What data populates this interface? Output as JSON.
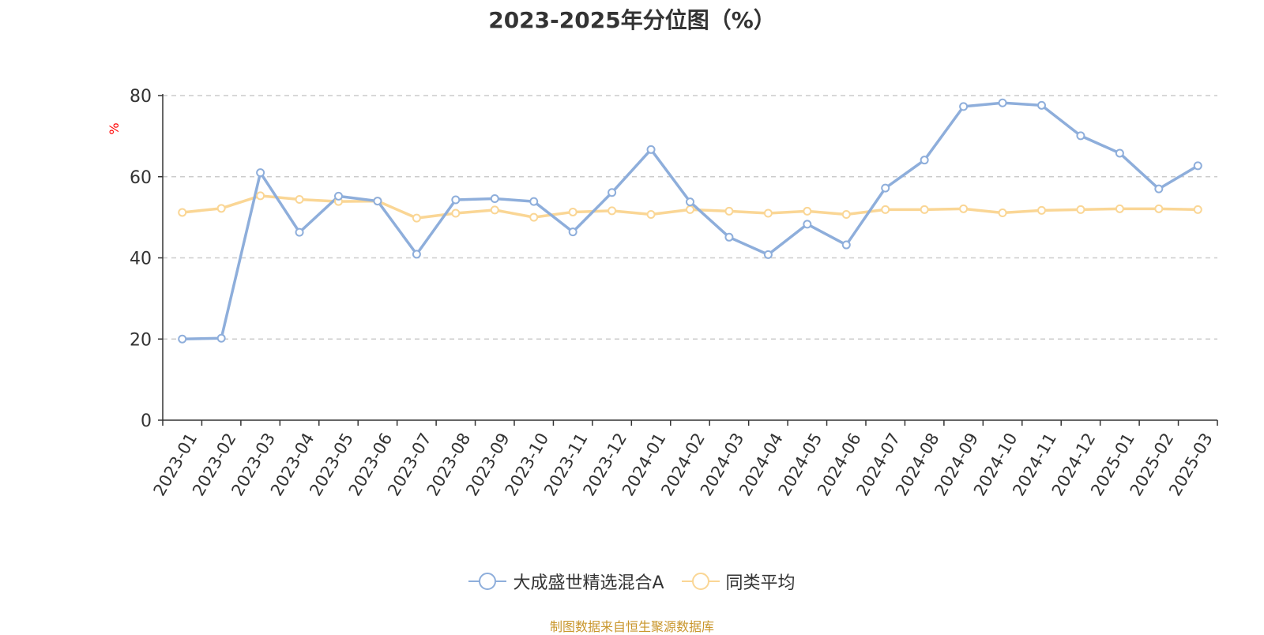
{
  "chart_data": {
    "type": "line",
    "title": "2023-2025年分位图（%）",
    "ylabel": "%",
    "xlabel": "",
    "ylim": [
      0,
      80
    ],
    "yticks": [
      0,
      20,
      40,
      60,
      80
    ],
    "grid": true,
    "legend_position": "bottom",
    "categories": [
      "2023-01",
      "2023-02",
      "2023-03",
      "2023-04",
      "2023-05",
      "2023-06",
      "2023-07",
      "2023-08",
      "2023-09",
      "2023-10",
      "2023-11",
      "2023-12",
      "2024-01",
      "2024-02",
      "2024-03",
      "2024-04",
      "2024-05",
      "2024-06",
      "2024-07",
      "2024-08",
      "2024-09",
      "2024-10",
      "2024-11",
      "2024-12",
      "2025-01",
      "2025-02",
      "2025-03"
    ],
    "series": [
      {
        "name": "大成盛世精选混合A",
        "color": "#8eaedb",
        "values": [
          20.0,
          20.2,
          61.0,
          46.3,
          55.2,
          54.0,
          40.9,
          54.3,
          54.6,
          53.9,
          46.4,
          56.1,
          66.7,
          53.8,
          45.1,
          40.8,
          48.3,
          43.2,
          57.2,
          64.1,
          77.3,
          78.2,
          77.6,
          70.1,
          65.8,
          57.0,
          62.7
        ]
      },
      {
        "name": "同类平均",
        "color": "#fad695",
        "values": [
          51.2,
          52.2,
          55.3,
          54.4,
          53.9,
          54.0,
          49.8,
          51.0,
          51.8,
          50.0,
          51.3,
          51.6,
          50.7,
          51.9,
          51.5,
          51.0,
          51.5,
          50.7,
          51.9,
          51.9,
          52.1,
          51.1,
          51.7,
          51.9,
          52.1,
          52.1,
          51.9
        ]
      }
    ]
  },
  "source_note": "制图数据来自恒生聚源数据库"
}
